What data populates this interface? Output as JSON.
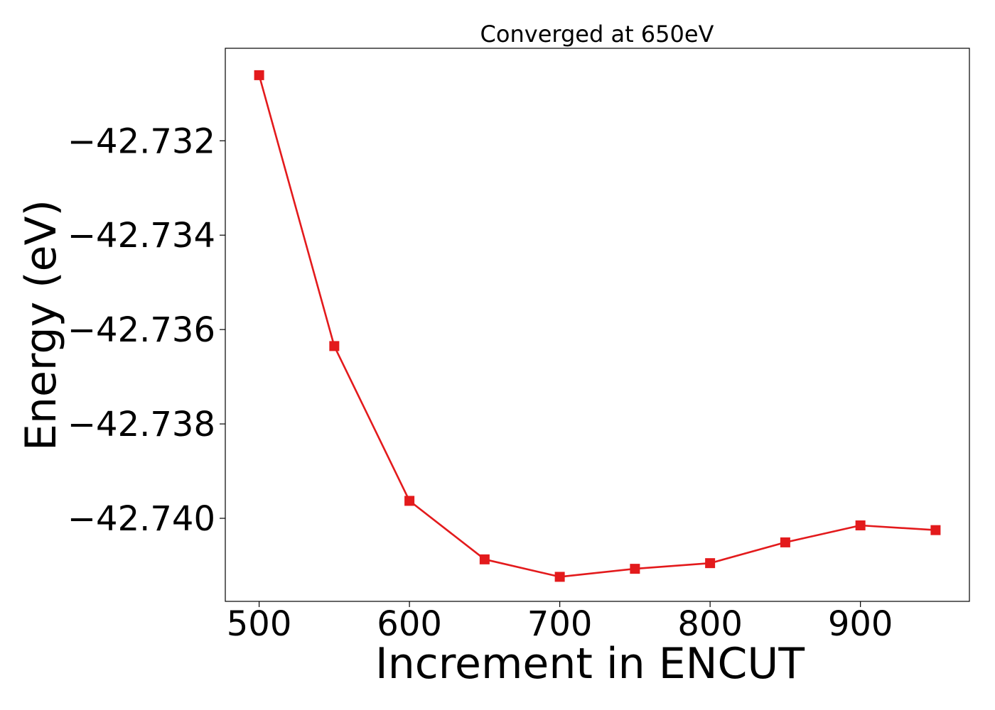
{
  "chart_data": {
    "type": "line",
    "title": "Converged at 650eV",
    "xlabel": "Increment in ENCUT",
    "ylabel": "Energy (eV)",
    "x": [
      500,
      550,
      600,
      650,
      700,
      750,
      800,
      850,
      900,
      950
    ],
    "series": [
      {
        "values": [
          -42.73061,
          -42.73635,
          -42.73963,
          -42.74087,
          -42.74124,
          -42.74107,
          -42.74095,
          -42.74051,
          -42.74015,
          -42.74025
        ],
        "color": "#e31a1c",
        "marker": "square"
      }
    ],
    "xlim": [
      477.5,
      972.5
    ],
    "ylim": [
      -42.74176,
      -42.73004
    ],
    "xticks": [
      500,
      600,
      700,
      800,
      900
    ],
    "yticks": [
      -42.732,
      -42.734,
      -42.736,
      -42.738,
      -42.74
    ],
    "xtick_labels": [
      "500",
      "600",
      "700",
      "800",
      "900"
    ],
    "ytick_labels": [
      "−42.732",
      "−42.734",
      "−42.736",
      "−42.738",
      "−42.740"
    ],
    "grid": false,
    "legend": false
  }
}
